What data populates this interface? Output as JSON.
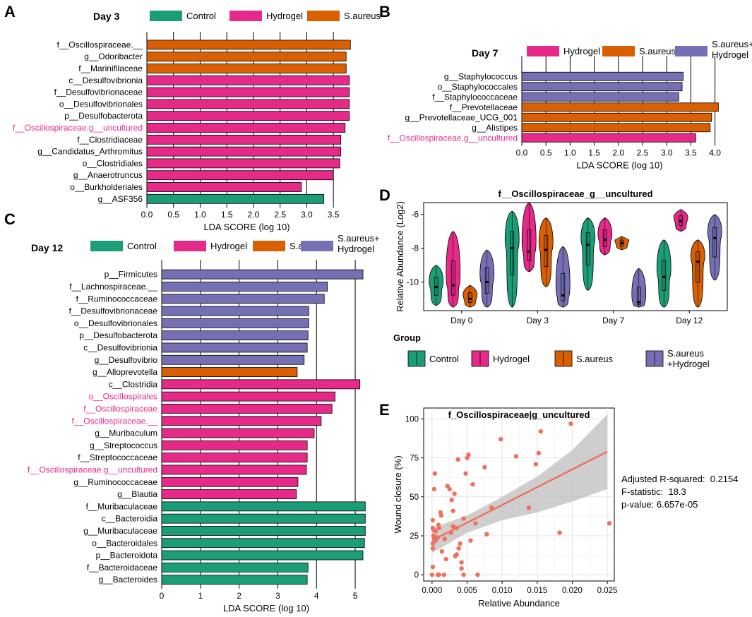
{
  "colors": {
    "Control": "#1b9e77",
    "Hydrogel": "#e7298a",
    "S.aureus": "#d95f02",
    "S.aureus+Hydrogel": "#7570b3",
    "highlight_label": "#e7298a",
    "fit_line": "#f0705e",
    "ci_band": "#bdbdbd",
    "points": "#f0705e"
  },
  "chart_data": [
    {
      "panel": "A",
      "type": "bar",
      "orientation": "horizontal",
      "title": "Day 3",
      "xlabel": "LDA SCORE (log 10)",
      "xlim": [
        0,
        3.75
      ],
      "xticks": [
        "0.0",
        "0.5",
        "1.0",
        "1.5",
        "2.0",
        "2.5",
        "3.0",
        "3.5"
      ],
      "legend": [
        "Control",
        "Hydrogel",
        "S.aureus"
      ],
      "categories": [
        "f__Oscillospiraceae.__",
        "g__Odoribacter",
        "f__Marinifilaceae",
        "c__Desulfovibrionia",
        "f__Desulfovibrionaceae",
        "o__Desulfovibrionales",
        "p__Desulfobacterota",
        "f__Oscillospiraceae.g__uncultured",
        "f__Clostridiaceae",
        "g__Candidatus_Arthromitus",
        "o__Clostridiales",
        "g__Anaerotruncus",
        "o__Burkholderiales",
        "g__ASF356"
      ],
      "values": [
        3.82,
        3.74,
        3.74,
        3.8,
        3.8,
        3.8,
        3.8,
        3.72,
        3.64,
        3.64,
        3.62,
        3.5,
        2.9,
        3.32
      ],
      "groups": [
        "S.aureus",
        "S.aureus",
        "S.aureus",
        "Hydrogel",
        "Hydrogel",
        "Hydrogel",
        "Hydrogel",
        "Hydrogel",
        "Hydrogel",
        "Hydrogel",
        "Hydrogel",
        "Hydrogel",
        "Hydrogel",
        "Control"
      ],
      "highlight": [
        false,
        false,
        false,
        false,
        false,
        false,
        false,
        true,
        false,
        false,
        false,
        false,
        false,
        false
      ]
    },
    {
      "panel": "B",
      "type": "bar",
      "orientation": "horizontal",
      "title": "Day 7",
      "xlabel": "LDA SCORE (log 10)",
      "xlim": [
        0,
        4.05
      ],
      "xticks": [
        "0.0",
        "0.5",
        "1.0",
        "1.5",
        "2.0",
        "2.5",
        "3.0",
        "3.5",
        "4.0"
      ],
      "legend": [
        "Hydrogel",
        "S.aureus",
        "S.aureus+\nHydrogel"
      ],
      "legend_groups": [
        "Hydrogel",
        "S.aureus",
        "S.aureus+Hydrogel"
      ],
      "categories": [
        "g__Staphylococcus",
        "o__Staphylococcales",
        "f__Staphylococcaceae",
        "f__Prevotellaceae",
        "g__Prevotellaceae_UCG_001",
        "g__Alistipes",
        "f__Oscillospiraceae.g__uncultured"
      ],
      "values": [
        3.34,
        3.32,
        3.25,
        4.07,
        3.93,
        3.9,
        3.6
      ],
      "groups": [
        "S.aureus+Hydrogel",
        "S.aureus+Hydrogel",
        "S.aureus+Hydrogel",
        "S.aureus",
        "S.aureus",
        "S.aureus",
        "Hydrogel"
      ],
      "highlight": [
        false,
        false,
        false,
        false,
        false,
        false,
        true
      ]
    },
    {
      "panel": "C",
      "type": "bar",
      "orientation": "horizontal",
      "title": "Day 12",
      "xlabel": "LDA SCORE (log 10)",
      "xlim": [
        0,
        5.4
      ],
      "xticks": [
        "0",
        "1",
        "2",
        "3",
        "4",
        "5"
      ],
      "legend": [
        "Control",
        "Hydrogel",
        "S.aureus",
        "S.aureus+\nHydrogel"
      ],
      "legend_groups": [
        "Control",
        "Hydrogel",
        "S.aureus",
        "S.aureus+Hydrogel"
      ],
      "categories": [
        "p__Firmicutes",
        "f__Lachnospiraceae.__",
        "f__Ruminococcaceae",
        "f__Desulfovibrionaceae",
        "o__Desulfovibrionales",
        "p__Desulfobacterota",
        "c__Desulfovibrionia",
        "g__Desulfovibrio",
        "g__Alloprevotella",
        "c__Clostridia",
        "o__Oscillospirales",
        "f__Oscillospiraceae",
        "f__Oscillospiraceae.__",
        "g__Muribaculum",
        "g__Streptococcus",
        "f__Streptococcaceae",
        "f__Oscillospiraceae.g__uncultured",
        "g__Ruminococcaceae",
        "g__Blautia",
        "f__Muribaculaceae",
        "c__Bacteroidia",
        "g__Muribaculaceae",
        "o__Bacteroidales",
        "p__Bacteroidota",
        "f__Bacteroidaceae",
        "g__Bacteroides"
      ],
      "values": [
        5.2,
        4.28,
        4.2,
        3.8,
        3.8,
        3.78,
        3.76,
        3.68,
        3.5,
        5.12,
        4.48,
        4.4,
        4.12,
        3.94,
        3.76,
        3.76,
        3.74,
        3.52,
        3.48,
        5.26,
        5.26,
        5.26,
        5.24,
        5.2,
        3.78,
        3.76
      ],
      "groups": [
        "S.aureus+Hydrogel",
        "S.aureus+Hydrogel",
        "S.aureus+Hydrogel",
        "S.aureus+Hydrogel",
        "S.aureus+Hydrogel",
        "S.aureus+Hydrogel",
        "S.aureus+Hydrogel",
        "S.aureus+Hydrogel",
        "S.aureus",
        "Hydrogel",
        "Hydrogel",
        "Hydrogel",
        "Hydrogel",
        "Hydrogel",
        "Hydrogel",
        "Hydrogel",
        "Hydrogel",
        "Hydrogel",
        "Hydrogel",
        "Control",
        "Control",
        "Control",
        "Control",
        "Control",
        "Control",
        "Control"
      ],
      "highlight": [
        false,
        false,
        false,
        false,
        false,
        false,
        false,
        false,
        false,
        false,
        true,
        true,
        true,
        false,
        false,
        false,
        true,
        false,
        false,
        false,
        false,
        false,
        false,
        false,
        false,
        false
      ]
    },
    {
      "panel": "D",
      "type": "violin",
      "title": "f__Oscillospiraceae_g__uncultured",
      "ylabel": "Relative Abundance (Log2)",
      "ylim": [
        -11.7,
        -5.3
      ],
      "yticks": [
        -10,
        -8,
        -6
      ],
      "ytick_labels": [
        "-10",
        "-8",
        "-6"
      ],
      "categories": [
        "Day 0",
        "Day 3",
        "Day 7",
        "Day 12"
      ],
      "legend_title": "Group",
      "legend": [
        "Control",
        "Hydrogel",
        "S.aureus",
        "S.aureus\n+Hydrogel"
      ],
      "series": [
        {
          "name": "Control",
          "violins": [
            [
              -11.4,
              -10.3,
              -9.0
            ],
            [
              -11.5,
              -8.0,
              -5.8
            ],
            [
              -10.5,
              -7.8,
              -6.2
            ],
            [
              -11.5,
              -9.7,
              -7.5
            ]
          ]
        },
        {
          "name": "Hydrogel",
          "violins": [
            [
              -11.5,
              -10.2,
              -7.0
            ],
            [
              -9.4,
              -8.2,
              -5.3
            ],
            [
              -8.4,
              -7.5,
              -6.2
            ],
            [
              -7.0,
              -6.4,
              -5.7
            ]
          ]
        },
        {
          "name": "S.aureus",
          "violins": [
            [
              -11.5,
              -11.0,
              -10.2
            ],
            [
              -10.3,
              -8.1,
              -6.2
            ],
            [
              -8.1,
              -7.7,
              -7.3
            ],
            [
              -11.5,
              -8.8,
              -7.5
            ]
          ]
        },
        {
          "name": "S.aureus+Hydrogel",
          "violins": [
            [
              -11.5,
              -10.0,
              -8.1
            ],
            [
              -11.5,
              -10.8,
              -7.9
            ],
            [
              -11.5,
              -11.2,
              -9.2
            ],
            [
              -9.9,
              -7.4,
              -6.0
            ]
          ]
        }
      ]
    },
    {
      "panel": "E",
      "type": "scatter",
      "title": "f_Oscillospiraceae|g_uncultured",
      "xlabel": "Relative Abundance",
      "ylabel": "Wound closure (%)",
      "xlim": [
        -0.0012,
        0.026
      ],
      "ylim": [
        -4,
        107
      ],
      "xticks": [
        0,
        0.005,
        0.01,
        0.015,
        0.02,
        0.025
      ],
      "xtick_labels": [
        "0.000",
        "0.005",
        "0.010",
        "0.015",
        "0.020",
        "0.025"
      ],
      "yticks": [
        0,
        25,
        50,
        75,
        100
      ],
      "ytick_labels": [
        "0",
        "25",
        "50",
        "75",
        "100"
      ],
      "x": [
        0.0,
        0.0001,
        0.0001,
        0.0002,
        0.0001,
        0.0003,
        0.0004,
        0.0005,
        0.0008,
        0.001,
        0.0012,
        0.0014,
        0.0005,
        0.0009,
        0.0017,
        0.002,
        0.0022,
        0.0025,
        0.0028,
        0.003,
        0.0032,
        0.0035,
        0.0037,
        0.004,
        0.0042,
        0.0045,
        0.0048,
        0.005,
        0.0052,
        0.0055,
        0.0058,
        0.0035,
        0.0038,
        0.0042,
        0.0045,
        0.0075,
        0.0078,
        0.0085,
        0.0098,
        0.012,
        0.0138,
        0.0148,
        0.0152,
        0.0155,
        0.0182,
        0.0198,
        0.0253,
        0.0018,
        0.0008,
        0.0001,
        0.0002,
        0.0003,
        0.001,
        0.0013,
        0.0001,
        0.0027,
        0.0033,
        0.003,
        0.0065,
        0.0062
      ],
      "y": [
        0,
        5,
        20,
        25,
        30,
        55,
        65,
        28,
        0,
        0,
        40,
        15,
        22,
        32,
        0,
        10,
        57,
        55,
        48,
        31,
        52,
        30,
        74,
        20,
        8,
        36,
        65,
        75,
        77,
        22,
        58,
        13,
        17,
        4,
        0,
        69,
        26,
        43,
        87,
        76,
        43,
        71,
        78,
        92,
        27,
        97,
        33,
        23,
        24,
        17,
        29,
        23,
        30,
        38,
        35,
        27,
        12,
        41,
        0,
        33
      ],
      "fit": {
        "x": [
          0,
          0.025
        ],
        "y": [
          22,
          79
        ]
      },
      "ci": {
        "x": [
          0,
          0.005,
          0.01,
          0.015,
          0.02,
          0.025
        ],
        "lower": [
          14,
          27,
          35,
          40,
          47,
          55
        ],
        "upper": [
          30,
          38,
          50,
          63,
          80,
          103
        ]
      },
      "annotations": [
        "Adjusted R-squared:  0.2154",
        "F-statistic:  18.3",
        "p-value: 6.657e-05"
      ]
    }
  ],
  "panel_labels": [
    "A",
    "B",
    "C",
    "D",
    "E"
  ]
}
